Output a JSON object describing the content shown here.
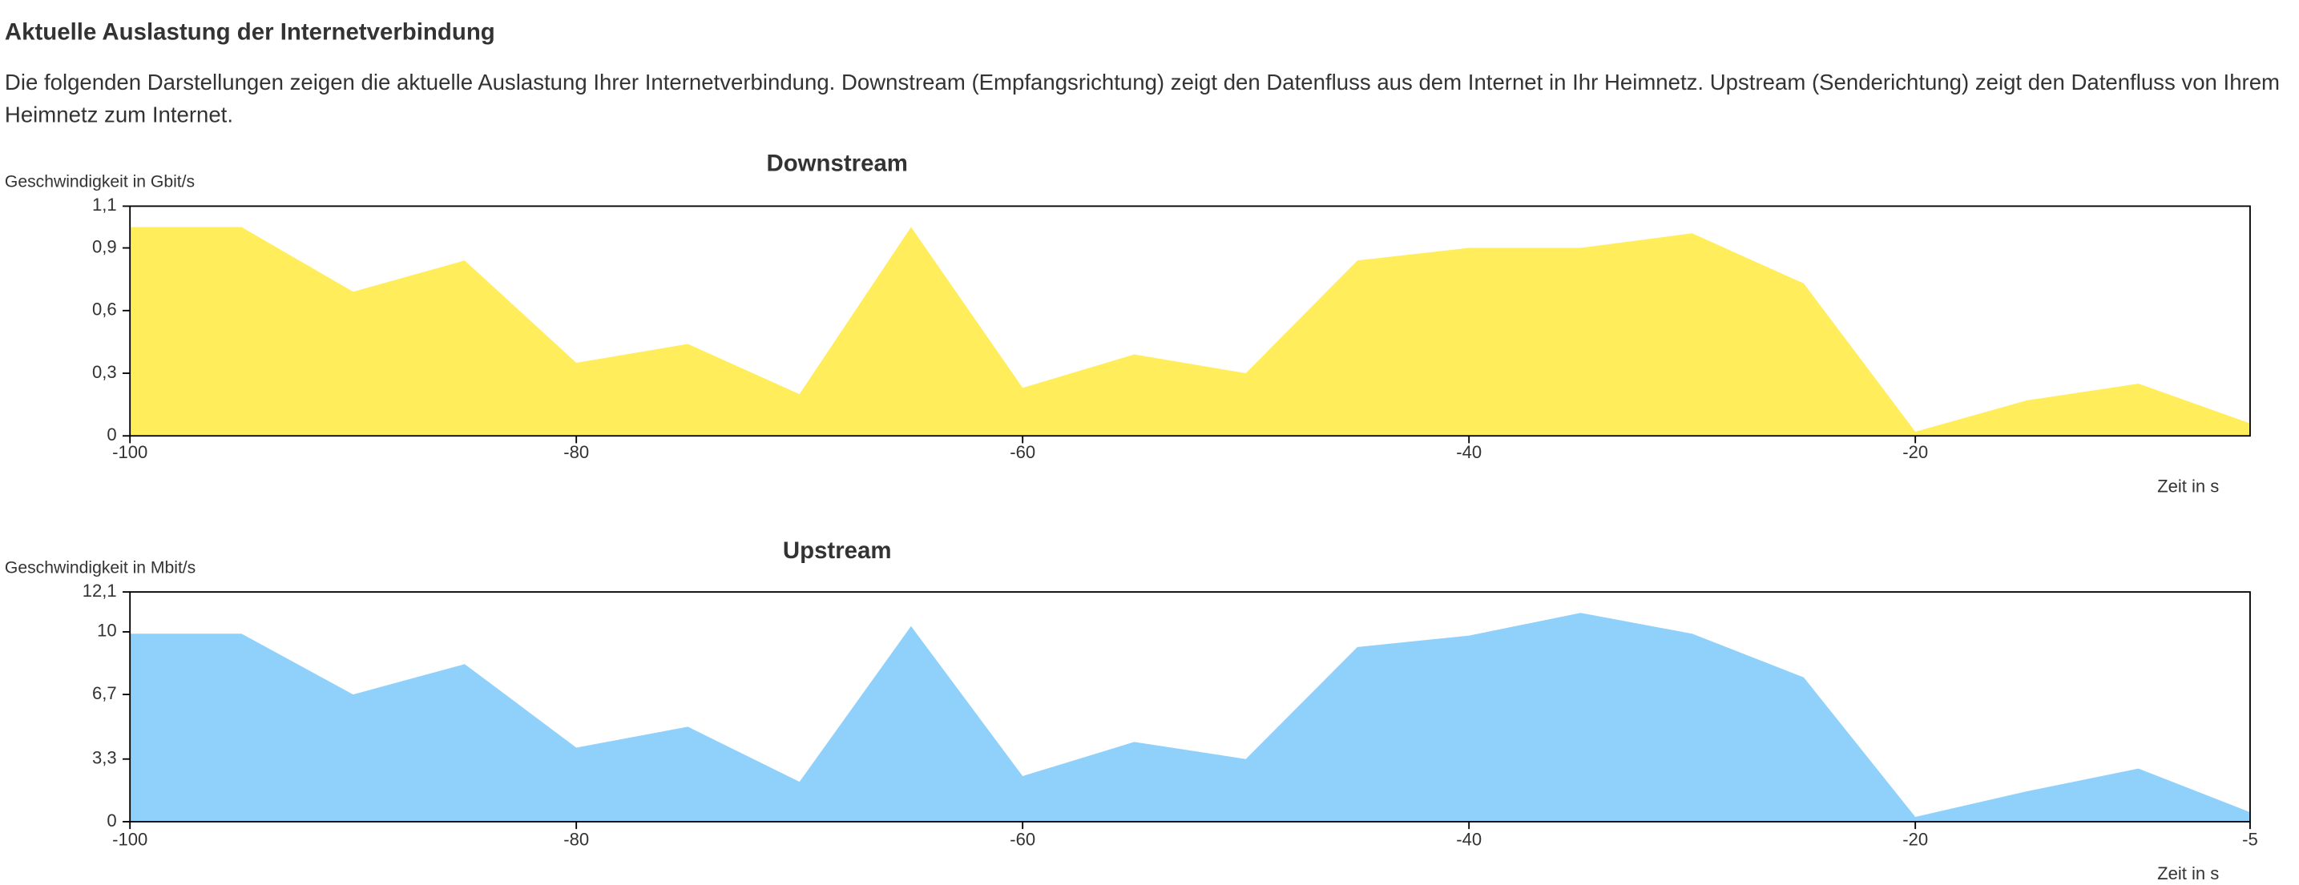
{
  "header": {
    "title": "Aktuelle Auslastung der Internetverbindung",
    "description": "Die folgenden Darstellungen zeigen die aktuelle Auslastung Ihrer Internetverbindung. Downstream (Empfangsrichtung) zeigt den Datenfluss aus dem Internet in Ihr Heimnetz. Upstream (Senderichtung) zeigt den Datenfluss von Ihrem Heimnetz zum Internet."
  },
  "chart_data": [
    {
      "type": "area",
      "title": "Downstream",
      "y_label": "Geschwindigkeit in Gbit/s",
      "x_label": "Zeit in s",
      "color": "#ffed5b",
      "x": [
        -100,
        -95,
        -90,
        -85,
        -80,
        -75,
        -70,
        -65,
        -60,
        -55,
        -50,
        -45,
        -40,
        -35,
        -30,
        -25,
        -20,
        -15,
        -10,
        -5
      ],
      "values": [
        1.0,
        1.0,
        0.69,
        0.84,
        0.35,
        0.44,
        0.2,
        1.0,
        0.23,
        0.39,
        0.3,
        0.84,
        0.9,
        0.9,
        0.97,
        0.73,
        0.02,
        0.17,
        0.25,
        0.06
      ],
      "xlim": [
        -100,
        -5
      ],
      "xticks": [
        -100,
        -80,
        -60,
        -40,
        -20
      ],
      "ylim": [
        0,
        1.1
      ],
      "yticks": [
        0,
        {
          "value": 0.3,
          "label": "0,3"
        },
        {
          "value": 0.6,
          "label": "0,6"
        },
        {
          "value": 0.9,
          "label": "0,9"
        },
        {
          "value": 1.1,
          "label": "1,1"
        }
      ]
    },
    {
      "type": "area",
      "title": "Upstream",
      "y_label": "Geschwindigkeit in Mbit/s",
      "x_label": "Zeit in s",
      "color": "#8fd1fb",
      "x": [
        -100,
        -95,
        -90,
        -85,
        -80,
        -75,
        -70,
        -65,
        -60,
        -55,
        -50,
        -45,
        -40,
        -35,
        -30,
        -25,
        -20,
        -15,
        -10,
        -5
      ],
      "values": [
        9.9,
        9.9,
        6.7,
        8.3,
        3.9,
        5.0,
        2.1,
        10.3,
        2.4,
        4.2,
        3.3,
        9.2,
        9.8,
        11.0,
        9.9,
        7.6,
        0.25,
        1.6,
        2.8,
        0.5
      ],
      "xlim": [
        -100,
        -5
      ],
      "xticks": [
        -100,
        -80,
        -60,
        -40,
        -20,
        -5
      ],
      "ylim": [
        0,
        12.1
      ],
      "yticks": [
        0,
        {
          "value": 3.3,
          "label": "3,3"
        },
        {
          "value": 6.7,
          "label": "6,7"
        },
        10,
        {
          "value": 12.1,
          "label": "12,1"
        }
      ]
    }
  ]
}
